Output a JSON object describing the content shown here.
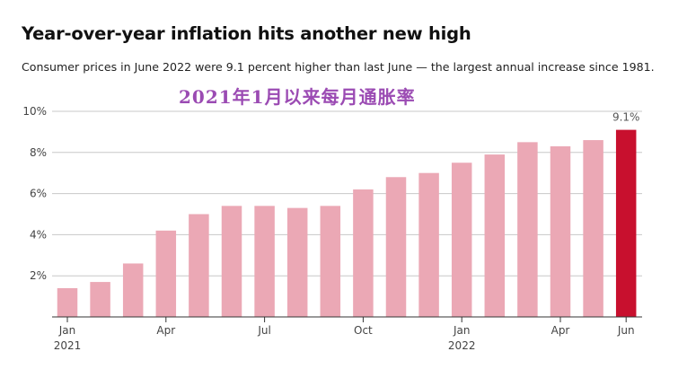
{
  "title": "Year-over-year inflation hits another new high",
  "subtitle": "Consumer prices in June 2022 were 9.1 percent higher than last June — the largest annual increase since 1981.",
  "overlay_text": "2021年1月以来每月通胀率",
  "colors": {
    "bar": "#eba8b5",
    "highlight": "#c8102e",
    "grid": "#c8c8c8",
    "axis": "#333333",
    "text": "#222222"
  },
  "chart_data": {
    "type": "bar",
    "title": "Year-over-year inflation hits another new high",
    "xlabel": "",
    "ylabel": "",
    "ylim": [
      0,
      10
    ],
    "yticks": [
      "2%",
      "4%",
      "6%",
      "8%",
      "10%"
    ],
    "ytick_values": [
      2,
      4,
      6,
      8,
      10
    ],
    "grid": true,
    "categories": [
      "Jan 2021",
      "Feb 2021",
      "Mar 2021",
      "Apr 2021",
      "May 2021",
      "Jun 2021",
      "Jul 2021",
      "Aug 2021",
      "Sep 2021",
      "Oct 2021",
      "Nov 2021",
      "Dec 2021",
      "Jan 2022",
      "Feb 2022",
      "Mar 2022",
      "Apr 2022",
      "May 2022",
      "Jun 2022"
    ],
    "values": [
      1.4,
      1.7,
      2.6,
      4.2,
      5.0,
      5.4,
      5.4,
      5.3,
      5.4,
      6.2,
      6.8,
      7.0,
      7.5,
      7.9,
      8.5,
      8.3,
      8.6,
      9.1
    ],
    "highlight_index": 17,
    "value_label": "9.1%",
    "xtick_labels": [
      {
        "index": 0,
        "month": "Jan",
        "year": "2021"
      },
      {
        "index": 3,
        "month": "Apr",
        "year": ""
      },
      {
        "index": 6,
        "month": "Jul",
        "year": ""
      },
      {
        "index": 9,
        "month": "Oct",
        "year": ""
      },
      {
        "index": 12,
        "month": "Jan",
        "year": "2022"
      },
      {
        "index": 15,
        "month": "Apr",
        "year": ""
      },
      {
        "index": 17,
        "month": "Jun",
        "year": ""
      }
    ]
  }
}
